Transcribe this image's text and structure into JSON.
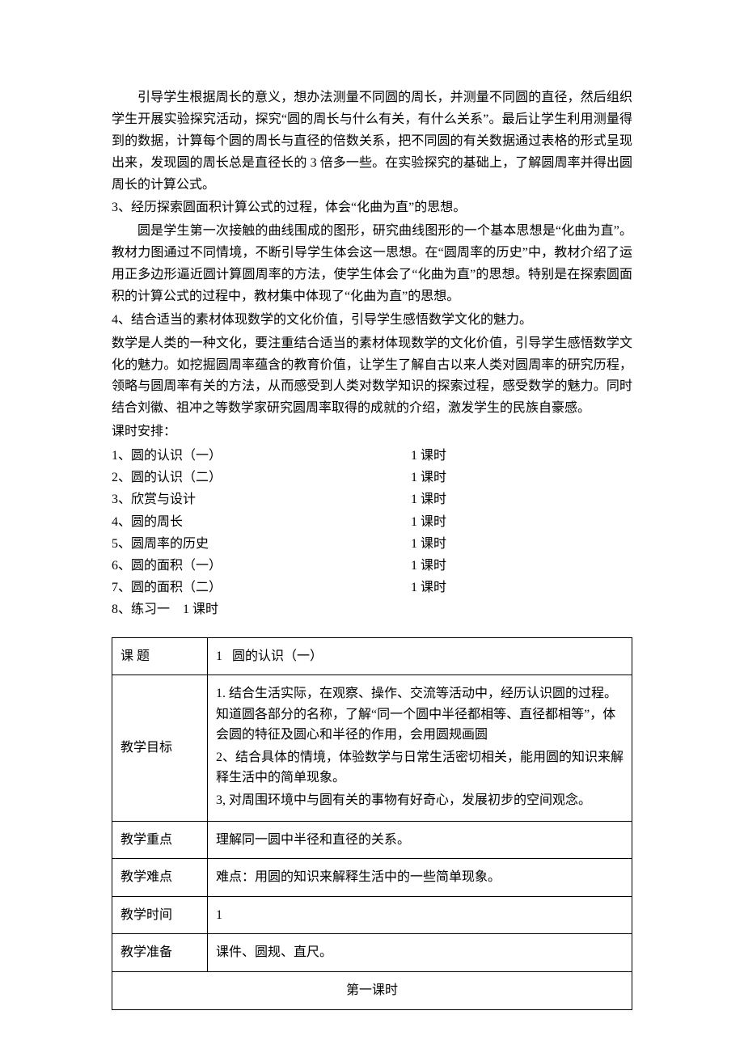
{
  "paragraphs": {
    "p1": "引导学生根据周长的意义，想办法测量不同圆的周长，并测量不同圆的直径，然后组织学生开展实验探究活动，探究“圆的周长与什么有关，有什么关系”。最后让学生利用测量得到的数据，计算每个圆的周长与直径的倍数关系，把不同圆的有关数据通过表格的形式呈现出来，发现圆的周长总是直径长的 3 倍多一些。在实验探究的基础上，了解圆周率并得出圆周长的计算公式。",
    "p2": "3、经历探索圆面积计算公式的过程，体会“化曲为直”的思想。",
    "p3": "圆是学生第一次接触的曲线围成的图形，研究曲线图形的一个基本思想是“化曲为直”。教材力图通过不同情境，不断引导学生体会这一思想。在“圆周率的历史”中，教材介绍了运用正多边形逼近圆计算圆周率的方法，使学生体会了“化曲为直”的思想。特别是在探索圆面积的计算公式的过程中，教材集中体现了“化曲为直”的思想。",
    "p4": "4、结合适当的素材体现数学的文化价值，引导学生感悟数学文化的魅力。",
    "p5": "数学是人类的一种文化，要注重结合适当的素材体现数学的文化价值，引导学生感悟数学文化的魅力。如挖掘圆周率蕴含的教育价值，让学生了解自古以来人类对圆周率的研究历程，领略与圆周率有关的方法，从而感受到人类对数学知识的探索过程，感受数学的魅力。同时结合刘徽、祖冲之等数学家研究圆周率取得的成就的介绍，激发学生的民族自豪感。",
    "scheduleTitle": "课时安排："
  },
  "schedule": [
    {
      "left": "1、圆的认识（一）",
      "right": "1 课时"
    },
    {
      "left": "2、圆的认识（二）",
      "right": "1 课时"
    },
    {
      "left": "3、欣赏与设计",
      "right": "1 课时"
    },
    {
      "left": "4、圆的周长",
      "right": "1 课时"
    },
    {
      "left": "5、圆周率的历史",
      "right": "1 课时"
    },
    {
      "left": "6、圆的面积（一）",
      "right": "1 课时"
    },
    {
      "left": "7、圆的面积（二）",
      "right": "1 课时"
    },
    {
      "left": "8、练习一    1 课时",
      "right": ""
    }
  ],
  "table": {
    "row1": {
      "label": "课 题",
      "value": "1   圆的认识（一）"
    },
    "row2": {
      "label": "教学目标",
      "lines": [
        "1. 结合生活实际，在观察、操作、交流等活动中，经历认识圆的过程。知道圆各部分的名称，了解“同一个圆中半径都相等、直径都相等”，体会圆的特征及圆心和半径的作用，会用圆规画圆",
        "2、结合具体的情境，体验数学与日常生活密切相关，能用圆的知识来解释生活中的简单现象。",
        "3, 对周围环境中与圆有关的事物有好奇心，发展初步的空间观念。"
      ]
    },
    "row3": {
      "label": "教学重点",
      "value": "理解同一圆中半径和直径的关系。"
    },
    "row4": {
      "label": "教学难点",
      "value": "难点：用圆的知识来解释生活中的一些简单现象。"
    },
    "row5": {
      "label": "教学时间",
      "value": "1"
    },
    "row6": {
      "label": "教学准备",
      "value": "课件、圆规、直尺。"
    },
    "row7": {
      "value": "第一课时"
    }
  }
}
